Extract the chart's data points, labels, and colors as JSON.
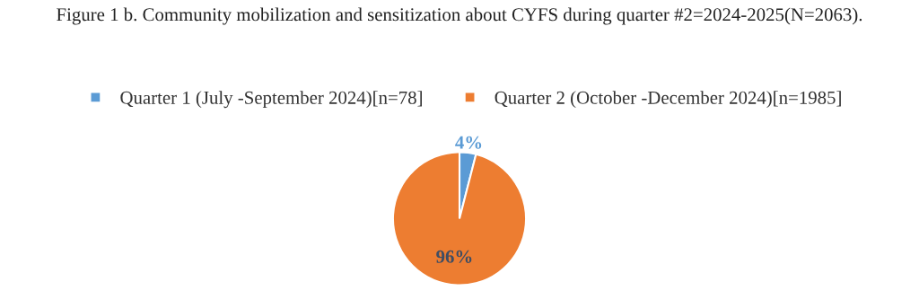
{
  "chart_data": {
    "type": "pie",
    "title": "Figure 1 b. Community mobilization and sensitization about CYFS during quarter #2=2024-2025(N=2063).",
    "categories": [
      "Quarter 1 (July -September 2024)[n=78]",
      "Quarter 2 (October -December 2024)[n=1985]"
    ],
    "values": [
      4,
      96
    ],
    "value_labels": [
      "4%",
      "96%"
    ],
    "colors": [
      "#5b9bd5",
      "#ed7d31"
    ],
    "legend": "top"
  }
}
